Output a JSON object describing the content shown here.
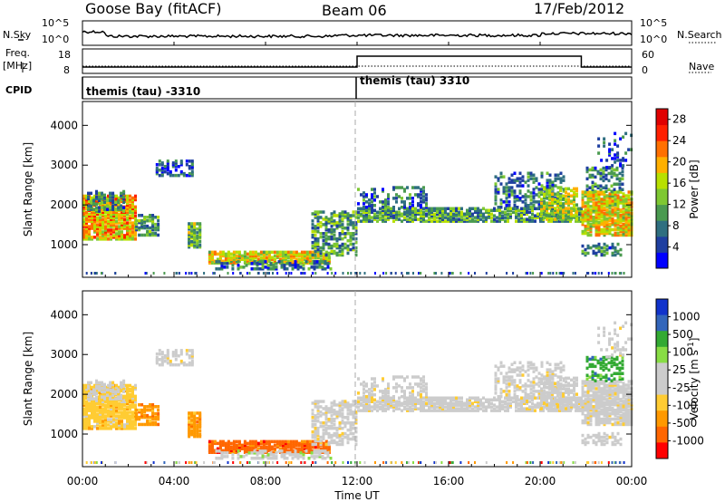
{
  "header": {
    "station": "Goose Bay (fitACF)",
    "beam": "Beam 06",
    "date": "17/Feb/2012"
  },
  "labels": {
    "nsky": "N.Sky",
    "nsearch": "N.Search",
    "freq": "Freq.",
    "mhz": "[MHz]",
    "nave": "Nave",
    "cpid": "CPID",
    "nsky_tick_hi": "10^5",
    "nsky_tick_lo": "10^0",
    "nsearch_tick_hi": "10^5",
    "nsearch_tick_lo": "10^0",
    "freq_tick_hi": "18",
    "freq_tick_lo": "8",
    "nave_tick_hi": "60",
    "nave_tick_lo": "0"
  },
  "cpid_segments": [
    {
      "label": "themis (tau) -3310",
      "start_hour": 0
    },
    {
      "label": "themis (tau) 3310",
      "start_hour": 12
    }
  ],
  "colors": {
    "power": [
      "#0000ff",
      "#1f3fa0",
      "#2f6f80",
      "#4a9a50",
      "#7ec832",
      "#b8e000",
      "#ffb000",
      "#ff7000",
      "#ff2000",
      "#e00000"
    ],
    "velocity": [
      "#ff0000",
      "#ff6600",
      "#ff9900",
      "#ffcc33",
      "#cccccc",
      "#cccccc",
      "#88dd44",
      "#33aa33",
      "#3366bb",
      "#1133cc"
    ],
    "ground_scatter": "#bbbbbb"
  },
  "chart_data": [
    {
      "type": "heatmap",
      "name": "power",
      "xlabel": "",
      "ylabel": "Slant Range [km]",
      "x_range_hours": [
        0,
        24
      ],
      "ylim": [
        180,
        4600
      ],
      "yticks": [
        1000,
        2000,
        3000,
        4000
      ],
      "colorbar_label": "Power [dB]",
      "colorbar_ticks": [
        "4",
        "8",
        "12",
        "16",
        "20",
        "24",
        "28"
      ],
      "colorbar_range": [
        0,
        30
      ]
    },
    {
      "type": "heatmap",
      "name": "velocity",
      "xlabel": "Time UT",
      "ylabel": "Slant Range [km]",
      "x_range_hours": [
        0,
        24
      ],
      "ylim": [
        180,
        4600
      ],
      "yticks": [
        1000,
        2000,
        3000,
        4000
      ],
      "xticks": [
        "00:00",
        "04:00",
        "08:00",
        "12:00",
        "16:00",
        "20:00",
        "00:00"
      ],
      "colorbar_label": "Velocity [m s^-1]",
      "colorbar_ticks": [
        "1000",
        "500",
        "100",
        "25",
        "-25",
        "-100",
        "-500",
        "-1000"
      ]
    }
  ],
  "scatter_regions": [
    {
      "h0": 0.0,
      "h1": 2.3,
      "r0": 1100,
      "r1": 2200,
      "p": 20,
      "v": 3,
      "dens": 0.85
    },
    {
      "h0": 2.3,
      "h1": 3.3,
      "r0": 1200,
      "r1": 1700,
      "p": 10,
      "v": 2,
      "dens": 0.6
    },
    {
      "h0": 0.2,
      "h1": 1.8,
      "r0": 1800,
      "r1": 2300,
      "p": 8,
      "v": 4,
      "dens": 0.4
    },
    {
      "h0": 3.2,
      "h1": 4.8,
      "r0": 2700,
      "r1": 3100,
      "p": 5,
      "v": 4,
      "dens": 0.5
    },
    {
      "h0": 4.6,
      "h1": 5.1,
      "r0": 900,
      "r1": 1500,
      "p": 12,
      "v": 2,
      "dens": 0.8
    },
    {
      "h0": 5.5,
      "h1": 10.8,
      "r0": 500,
      "r1": 800,
      "p": 18,
      "v": 1,
      "dens": 0.85
    },
    {
      "h0": 5.8,
      "h1": 10.8,
      "r0": 350,
      "r1": 560,
      "p": 6,
      "v": 5,
      "dens": 0.5
    },
    {
      "h0": 10.0,
      "h1": 12.0,
      "r0": 700,
      "r1": 1800,
      "p": 10,
      "v": 4,
      "dens": 0.55
    },
    {
      "h0": 12.0,
      "h1": 21.8,
      "r0": 1550,
      "r1": 1900,
      "p": 10,
      "v": 4,
      "dens": 0.75
    },
    {
      "h0": 12.0,
      "h1": 15.0,
      "r0": 1900,
      "r1": 2400,
      "p": 6,
      "v": 4,
      "dens": 0.3
    },
    {
      "h0": 18.0,
      "h1": 21.0,
      "r0": 1900,
      "r1": 2800,
      "p": 7,
      "v": 4,
      "dens": 0.35
    },
    {
      "h0": 20.0,
      "h1": 21.6,
      "r0": 1600,
      "r1": 2400,
      "p": 15,
      "v": 4,
      "dens": 0.6
    },
    {
      "h0": 21.8,
      "h1": 24.0,
      "r0": 1200,
      "r1": 2300,
      "p": 18,
      "v": 4,
      "dens": 0.8
    },
    {
      "h0": 21.8,
      "h1": 23.5,
      "r0": 700,
      "r1": 1000,
      "p": 8,
      "v": 4,
      "dens": 0.45
    },
    {
      "h0": 22.0,
      "h1": 23.6,
      "r0": 2300,
      "r1": 2900,
      "p": 8,
      "v": 7,
      "dens": 0.4
    },
    {
      "h0": 22.5,
      "h1": 24.0,
      "r0": 2900,
      "r1": 3800,
      "p": 5,
      "v": 4,
      "dens": 0.15
    }
  ],
  "footer": {
    "xlabel": "Time UT"
  }
}
